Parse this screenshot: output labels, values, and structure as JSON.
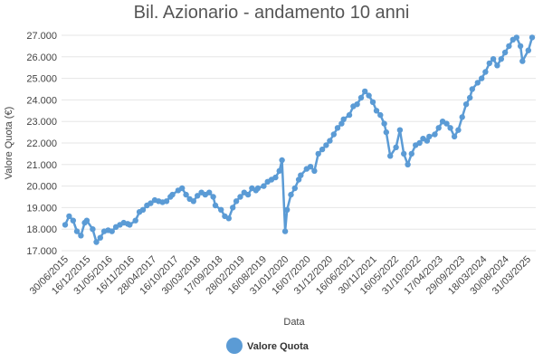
{
  "chart_data": {
    "type": "line",
    "title": "Bil. Azionario - andamento 10 anni",
    "xlabel": "Data",
    "ylabel": "Valore Quota (€)",
    "ylim": [
      17.0,
      27.0
    ],
    "y_ticks": [
      "17.000",
      "18.000",
      "19.000",
      "20.000",
      "21.000",
      "22.000",
      "23.000",
      "24.000",
      "25.000",
      "26.000",
      "27.000"
    ],
    "x_ticks": [
      "30/06/2015",
      "16/12/2015",
      "31/05/2016",
      "16/11/2016",
      "28/04/2017",
      "16/10/2017",
      "30/03/2018",
      "17/09/2018",
      "28/02/2019",
      "16/08/2019",
      "31/01/2020",
      "16/07/2020",
      "31/12/2020",
      "16/06/2021",
      "30/11/2021",
      "16/05/2022",
      "31/10/2022",
      "17/04/2023",
      "29/09/2023",
      "18/03/2024",
      "30/08/2024",
      "31/03/2025"
    ],
    "grid": true,
    "legend_position": "bottom",
    "series": [
      {
        "name": "Valore Quota",
        "color": "#5b9bd5",
        "x": [
          "2015-06-30",
          "2015-07-31",
          "2015-08-31",
          "2015-09-30",
          "2015-10-31",
          "2015-11-30",
          "2015-12-16",
          "2016-01-31",
          "2016-02-29",
          "2016-03-31",
          "2016-04-30",
          "2016-05-31",
          "2016-06-30",
          "2016-07-31",
          "2016-08-31",
          "2016-09-30",
          "2016-10-31",
          "2016-11-16",
          "2016-12-31",
          "2017-01-31",
          "2017-02-28",
          "2017-03-31",
          "2017-04-28",
          "2017-05-31",
          "2017-06-30",
          "2017-07-31",
          "2017-08-31",
          "2017-09-30",
          "2017-10-16",
          "2017-11-30",
          "2017-12-31",
          "2018-01-31",
          "2018-02-28",
          "2018-03-30",
          "2018-04-30",
          "2018-05-31",
          "2018-06-30",
          "2018-07-31",
          "2018-08-31",
          "2018-09-17",
          "2018-10-31",
          "2018-11-30",
          "2018-12-31",
          "2019-01-31",
          "2019-02-28",
          "2019-03-31",
          "2019-04-30",
          "2019-05-31",
          "2019-06-30",
          "2019-07-31",
          "2019-08-16",
          "2019-09-30",
          "2019-10-31",
          "2019-11-30",
          "2019-12-31",
          "2020-01-31",
          "2020-02-20",
          "2020-03-16",
          "2020-03-31",
          "2020-04-30",
          "2020-05-31",
          "2020-06-30",
          "2020-07-16",
          "2020-08-31",
          "2020-09-30",
          "2020-10-31",
          "2020-11-30",
          "2020-12-31",
          "2021-01-31",
          "2021-02-28",
          "2021-03-31",
          "2021-04-30",
          "2021-05-31",
          "2021-06-16",
          "2021-07-31",
          "2021-08-31",
          "2021-09-30",
          "2021-10-31",
          "2021-11-30",
          "2021-12-31",
          "2022-01-31",
          "2022-02-28",
          "2022-03-31",
          "2022-04-30",
          "2022-05-16",
          "2022-06-16",
          "2022-07-31",
          "2022-08-31",
          "2022-09-30",
          "2022-10-31",
          "2022-11-30",
          "2022-12-31",
          "2023-01-31",
          "2023-02-28",
          "2023-03-31",
          "2023-04-17",
          "2023-05-31",
          "2023-06-30",
          "2023-07-31",
          "2023-08-31",
          "2023-09-29",
          "2023-10-31",
          "2023-11-30",
          "2023-12-31",
          "2024-01-31",
          "2024-02-29",
          "2024-03-18",
          "2024-04-30",
          "2024-05-31",
          "2024-06-30",
          "2024-07-31",
          "2024-08-30",
          "2024-09-30",
          "2024-10-31",
          "2024-11-30",
          "2024-12-31",
          "2025-01-31",
          "2025-02-28",
          "2025-03-31",
          "2025-04-15",
          "2025-05-31",
          "2025-06-30"
        ],
        "values": [
          18.2,
          18.6,
          18.4,
          17.9,
          17.7,
          18.3,
          18.4,
          18.0,
          17.4,
          17.6,
          17.9,
          17.95,
          17.9,
          18.1,
          18.2,
          18.3,
          18.25,
          18.2,
          18.4,
          18.8,
          18.9,
          19.1,
          19.2,
          19.35,
          19.3,
          19.25,
          19.3,
          19.5,
          19.6,
          19.8,
          19.9,
          19.6,
          19.4,
          19.3,
          19.55,
          19.7,
          19.6,
          19.7,
          19.5,
          19.1,
          18.9,
          18.6,
          18.5,
          19.0,
          19.3,
          19.5,
          19.7,
          19.6,
          19.9,
          19.8,
          19.9,
          20.0,
          20.2,
          20.3,
          20.4,
          20.7,
          21.2,
          17.9,
          18.9,
          19.6,
          19.9,
          20.3,
          20.5,
          20.8,
          20.9,
          20.7,
          21.5,
          21.7,
          21.9,
          22.1,
          22.4,
          22.7,
          22.9,
          23.1,
          23.3,
          23.7,
          23.8,
          24.1,
          24.4,
          24.2,
          23.9,
          23.5,
          23.3,
          22.9,
          22.5,
          21.4,
          21.8,
          22.6,
          21.5,
          21.0,
          21.5,
          21.9,
          22.0,
          22.2,
          22.1,
          22.3,
          22.4,
          22.7,
          23.0,
          22.9,
          22.7,
          22.3,
          22.6,
          23.2,
          23.8,
          24.1,
          24.5,
          24.8,
          25.0,
          25.3,
          25.7,
          25.9,
          25.6,
          25.9,
          26.2,
          26.5,
          26.8,
          26.9,
          26.5,
          25.8,
          26.3,
          26.9
        ]
      }
    ]
  }
}
